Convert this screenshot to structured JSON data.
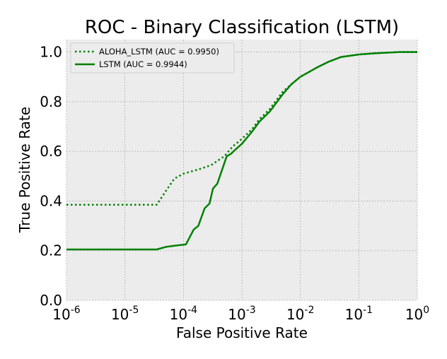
{
  "chart_data": {
    "type": "line",
    "title": "ROC - Binary Classification (LSTM)",
    "xlabel": "False Positive Rate",
    "ylabel": "True Positive Rate",
    "xscale": "log",
    "xlim": [
      1e-06,
      1
    ],
    "ylim": [
      0.0,
      1.05
    ],
    "grid": true,
    "legend_position": "top-left",
    "x_ticks": [
      {
        "base": "10",
        "exp": "-6"
      },
      {
        "base": "10",
        "exp": "-5"
      },
      {
        "base": "10",
        "exp": "-4"
      },
      {
        "base": "10",
        "exp": "-3"
      },
      {
        "base": "10",
        "exp": "-2"
      },
      {
        "base": "10",
        "exp": "-1"
      },
      {
        "base": "10",
        "exp": "0"
      }
    ],
    "y_ticks": [
      "0.0",
      "0.2",
      "0.4",
      "0.6",
      "0.8",
      "1.0"
    ],
    "series": [
      {
        "name": "ALOHA_LSTM (AUC = 0.9950)",
        "color": "#008000",
        "style": "dotted",
        "x": [
          1e-06,
          3.5e-05,
          5e-05,
          7e-05,
          0.0001,
          0.0002,
          0.0003,
          0.0005,
          0.0007,
          0.001,
          0.0015,
          0.002,
          0.003,
          0.005,
          0.007,
          0.01,
          0.02,
          0.03,
          0.05,
          0.1,
          0.2,
          0.5,
          1
        ],
        "y": [
          0.385,
          0.385,
          0.44,
          0.49,
          0.51,
          0.53,
          0.545,
          0.58,
          0.62,
          0.65,
          0.69,
          0.73,
          0.77,
          0.84,
          0.87,
          0.9,
          0.94,
          0.96,
          0.98,
          0.99,
          0.995,
          1.0,
          1.0
        ]
      },
      {
        "name": "LSTM (AUC = 0.9944)",
        "color": "#008000",
        "style": "solid",
        "x": [
          1e-06,
          3.5e-05,
          5e-05,
          7e-05,
          0.00011,
          0.00015,
          0.00018,
          0.00023,
          0.00028,
          0.00032,
          0.00038,
          0.00045,
          0.00055,
          0.00065,
          0.0008,
          0.001,
          0.0015,
          0.002,
          0.003,
          0.005,
          0.007,
          0.01,
          0.02,
          0.03,
          0.05,
          0.1,
          0.2,
          0.5,
          1
        ],
        "y": [
          0.205,
          0.205,
          0.215,
          0.22,
          0.225,
          0.285,
          0.3,
          0.37,
          0.39,
          0.45,
          0.47,
          0.52,
          0.58,
          0.59,
          0.61,
          0.63,
          0.68,
          0.72,
          0.76,
          0.83,
          0.87,
          0.9,
          0.94,
          0.96,
          0.98,
          0.99,
          0.995,
          1.0,
          1.0
        ]
      }
    ]
  }
}
